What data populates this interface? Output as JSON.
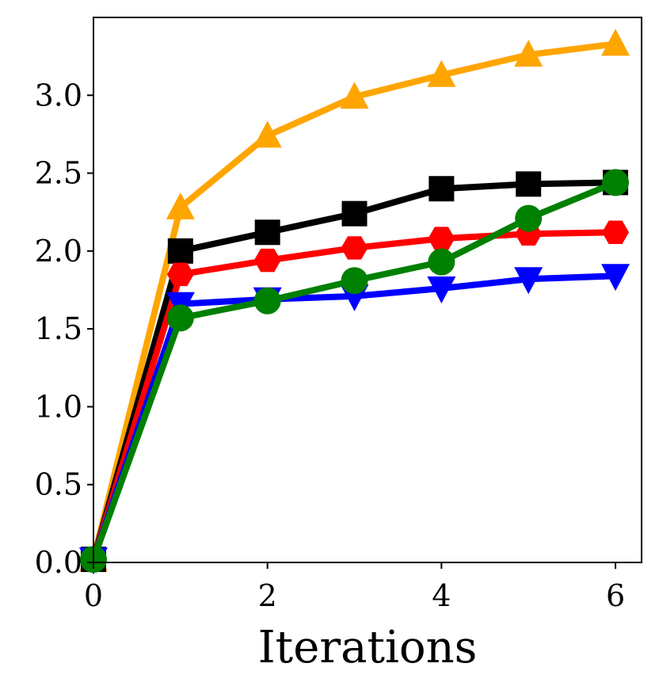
{
  "chart_data": {
    "type": "line",
    "title": "",
    "xlabel": "Iterations",
    "ylabel": "",
    "xlim": [
      0,
      6.3
    ],
    "ylim": [
      0,
      3.5
    ],
    "xticks": [
      0,
      2,
      4,
      6
    ],
    "xtick_labels": [
      "0",
      "2",
      "4",
      "6"
    ],
    "yticks": [
      0,
      0.5,
      1.0,
      1.5,
      2.0,
      2.5,
      3.0
    ],
    "ytick_labels": [
      "0.0",
      "0.5",
      "1.0",
      "1.5",
      "2.0",
      "2.5",
      "3.0"
    ],
    "grid": false,
    "legend": "none",
    "x": [
      0,
      1,
      2,
      3,
      4,
      5,
      6
    ],
    "series": [
      {
        "name": "orange-triangle-up",
        "color": "#FFA500",
        "marker": "triangle-up",
        "values": [
          0.02,
          2.28,
          2.74,
          2.99,
          3.13,
          3.26,
          3.33
        ]
      },
      {
        "name": "black-square",
        "color": "#000000",
        "marker": "square",
        "values": [
          0.02,
          2.0,
          2.12,
          2.24,
          2.4,
          2.43,
          2.44
        ]
      },
      {
        "name": "red-hexagon",
        "color": "#FF0000",
        "marker": "hexagon",
        "values": [
          0.02,
          1.85,
          1.94,
          2.02,
          2.08,
          2.11,
          2.12
        ]
      },
      {
        "name": "blue-triangle-down",
        "color": "#0000FF",
        "marker": "triangle-down",
        "values": [
          0.02,
          1.66,
          1.69,
          1.71,
          1.76,
          1.82,
          1.84
        ]
      },
      {
        "name": "green-circle",
        "color": "#008000",
        "marker": "circle",
        "values": [
          0.02,
          1.57,
          1.68,
          1.81,
          1.93,
          2.21,
          2.44
        ]
      }
    ]
  }
}
